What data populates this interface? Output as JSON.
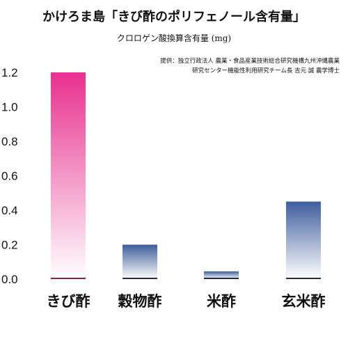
{
  "chart_data": {
    "type": "bar",
    "title": "かけろま島「きび酢のポリフェノール含有量」",
    "subtitle": "クロロゲン酸換算含有量 (mg)",
    "credit": [
      "提供：独立行政法人 農業・食品産業技術総合研究機構九州沖縄農業",
      "研究センター機能性利用研究チーム長 吉元 誠 農学博士"
    ],
    "categories": [
      "きび酢",
      "穀物酢",
      "米酢",
      "玄米酢"
    ],
    "values": [
      1.2,
      0.2,
      0.045,
      0.45
    ],
    "ylim": [
      0,
      1.2
    ],
    "yticks": [
      "0.0",
      "0.2",
      "0.4",
      "0.6",
      "0.8",
      "1.0",
      "1.2"
    ],
    "ytick_values": [
      0,
      0.2,
      0.4,
      0.6,
      0.8,
      1.0,
      1.2
    ],
    "xlabel": "",
    "ylabel": "",
    "grid": false,
    "colors": {
      "highlight_top": "#e8308f",
      "highlight_bottom": "#ffffff",
      "normal_top": "#3f5e9c",
      "normal_bottom": "#ffffff",
      "baseline_pink": "#8a1f4f",
      "baseline_blue": "#1f2e55"
    }
  }
}
